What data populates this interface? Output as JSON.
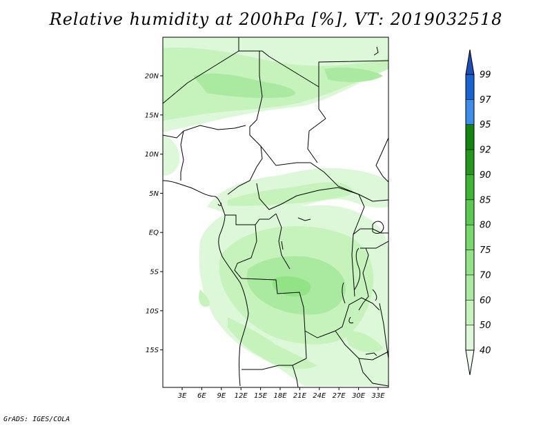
{
  "title": "Relative humidity at 200hPa [%], VT: 2019032518",
  "credit": "GrADS: IGES/COLA",
  "map": {
    "variable": "Relative humidity",
    "level": "200hPa",
    "unit": "%",
    "valid_time": "2019032518",
    "lat_ticks": [
      "20N",
      "15N",
      "10N",
      "5N",
      "EQ",
      "5S",
      "10S",
      "15S"
    ],
    "lon_ticks": [
      "3E",
      "6E",
      "9E",
      "12E",
      "15E",
      "18E",
      "21E",
      "24E",
      "27E",
      "30E",
      "33E"
    ]
  },
  "colorbar": {
    "levels": [
      "40",
      "50",
      "60",
      "70",
      "75",
      "80",
      "85",
      "90",
      "92",
      "95",
      "97",
      "99"
    ],
    "colors": [
      "#f0fdef",
      "#ddf8d8",
      "#c6f2bc",
      "#aaeaa0",
      "#92e286",
      "#78d86c",
      "#5cca52",
      "#3db534",
      "#24981c",
      "#128610",
      "#3c8ee8",
      "#1a64d2",
      "#1d4fb4"
    ]
  }
}
